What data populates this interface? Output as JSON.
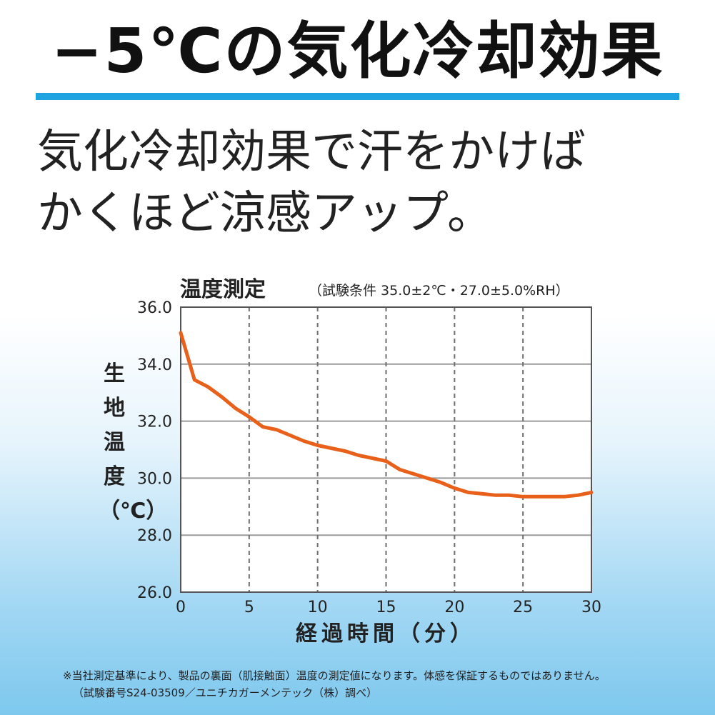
{
  "headline": "−5℃の気化冷却効果",
  "subhead": {
    "line1": "気化冷却効果で汗をかけば",
    "line2": "かくほど涼感アップ。"
  },
  "colors": {
    "accent": "#1fa4e1",
    "series": "#e8601a"
  },
  "chart_data": {
    "type": "line",
    "title": "温度測定",
    "subtitle": "（試験条件 35.0±2℃・27.0±5.0%RH）",
    "xlabel": "経過時間（分）",
    "ylabel": "生地温度（℃）",
    "xlim": [
      0,
      30
    ],
    "ylim": [
      26.0,
      36.0
    ],
    "x_ticks": [
      "0",
      "5",
      "10",
      "15",
      "20",
      "25",
      "30"
    ],
    "y_ticks": [
      "26.0",
      "28.0",
      "30.0",
      "32.0",
      "34.0",
      "36.0"
    ],
    "grid": true,
    "series": [
      {
        "x": [
          0,
          1,
          2,
          3,
          4,
          5,
          6,
          7,
          8,
          9,
          10,
          11,
          12,
          13,
          14,
          15,
          16,
          17,
          18,
          19,
          20,
          21,
          22,
          23,
          24,
          25,
          26,
          27,
          28,
          29,
          30
        ],
        "y": [
          35.1,
          33.45,
          33.2,
          32.85,
          32.45,
          32.15,
          31.8,
          31.7,
          31.5,
          31.3,
          31.15,
          31.05,
          30.95,
          30.8,
          30.7,
          30.6,
          30.3,
          30.15,
          30.0,
          29.85,
          29.65,
          29.5,
          29.45,
          29.4,
          29.4,
          29.35,
          29.35,
          29.35,
          29.35,
          29.4,
          29.5
        ]
      }
    ]
  },
  "footnote": {
    "line1": "※当社測定基準により、製品の裏面（肌接触面）温度の測定値になります。体感を保証するものではありません。",
    "line2": "（試験番号S24-03509／ユニチカガーメンテック（株）調べ）"
  }
}
